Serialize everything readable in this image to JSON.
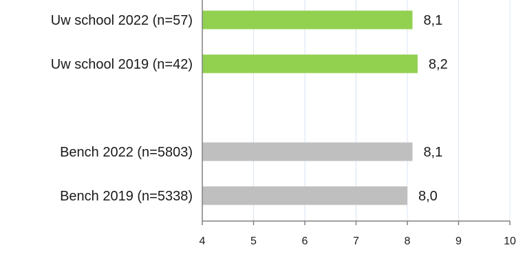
{
  "chart_data": {
    "type": "bar",
    "orientation": "horizontal",
    "categories": [
      "Uw school 2022 (n=57)",
      "Uw school 2019 (n=42)",
      "",
      "Bench 2022 (n=5803)",
      "Bench 2019 (n=5338)"
    ],
    "values": [
      8.1,
      8.2,
      null,
      8.1,
      8.0
    ],
    "value_labels": [
      "8,1",
      "8,2",
      "",
      "8,1",
      "8,0"
    ],
    "bar_colors": [
      "#92D050",
      "#92D050",
      null,
      "#BFBFBF",
      "#BFBFBF"
    ],
    "xlim": [
      4,
      10
    ],
    "x_ticks": [
      "4",
      "5",
      "6",
      "7",
      "8",
      "9",
      "10"
    ],
    "grid": true,
    "gridline_color": "#D9E4F2",
    "axis_color": "#808080",
    "title": "",
    "xlabel": "",
    "ylabel": ""
  }
}
